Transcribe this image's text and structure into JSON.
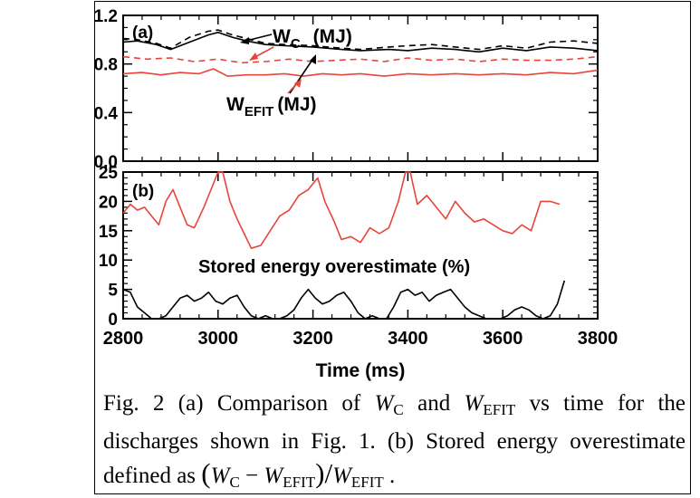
{
  "chart_data": [
    {
      "panel": "(a)",
      "type": "line",
      "xlim": [
        2800,
        3800
      ],
      "ylim": [
        0,
        1.2
      ],
      "yticks": [
        0.0,
        0.4,
        0.8,
        1.2
      ],
      "ytick_labels": [
        "0.0",
        "0.4",
        "0.8",
        "1.2"
      ],
      "annotations": {
        "wc_main": "W",
        "wc_sub": "C",
        "wc_unit": "(MJ)",
        "wefit_main": "W",
        "wefit_sub": "EFIT",
        "wefit_unit": "(MJ)"
      },
      "series": [
        {
          "color": "#000000",
          "dash": "solid",
          "x": [
            2800,
            2830,
            2870,
            2900,
            2940,
            2980,
            3000,
            3030,
            3060,
            3100,
            3140,
            3200,
            3260,
            3300,
            3360,
            3400,
            3450,
            3500,
            3550,
            3600,
            3650,
            3700,
            3750,
            3800
          ],
          "y": [
            0.98,
            0.99,
            0.96,
            0.92,
            0.98,
            1.04,
            1.06,
            1.02,
            0.99,
            0.96,
            0.95,
            0.94,
            0.92,
            0.91,
            0.92,
            0.91,
            0.93,
            0.92,
            0.9,
            0.93,
            0.91,
            0.94,
            0.93,
            0.91
          ]
        },
        {
          "color": "#000000",
          "dash": "dashed",
          "x": [
            2800,
            2830,
            2870,
            2900,
            2940,
            2980,
            3000,
            3030,
            3060,
            3100,
            3140,
            3200,
            3260,
            3300,
            3360,
            3400,
            3450,
            3500,
            3550,
            3600,
            3650,
            3700,
            3750,
            3800
          ],
          "y": [
            1.01,
            1.0,
            0.97,
            0.93,
            1.02,
            1.07,
            1.08,
            1.04,
            1.01,
            0.97,
            0.96,
            0.95,
            0.93,
            0.92,
            0.94,
            0.95,
            0.96,
            0.94,
            0.92,
            0.95,
            0.93,
            0.98,
            0.99,
            0.97
          ]
        },
        {
          "color": "#e8443a",
          "dash": "dashed",
          "x": [
            2800,
            2850,
            2900,
            2950,
            3000,
            3050,
            3100,
            3150,
            3200,
            3250,
            3300,
            3350,
            3400,
            3450,
            3500,
            3550,
            3600,
            3650,
            3700,
            3750,
            3800
          ],
          "y": [
            0.86,
            0.84,
            0.85,
            0.82,
            0.84,
            0.81,
            0.82,
            0.84,
            0.82,
            0.83,
            0.84,
            0.82,
            0.85,
            0.83,
            0.84,
            0.82,
            0.84,
            0.83,
            0.83,
            0.84,
            0.86
          ]
        },
        {
          "color": "#e8443a",
          "dash": "solid",
          "x": [
            2800,
            2840,
            2880,
            2920,
            2960,
            2990,
            3020,
            3060,
            3100,
            3140,
            3180,
            3220,
            3260,
            3300,
            3350,
            3400,
            3450,
            3500,
            3550,
            3600,
            3650,
            3700,
            3750,
            3800
          ],
          "y": [
            0.72,
            0.73,
            0.71,
            0.73,
            0.72,
            0.76,
            0.7,
            0.71,
            0.71,
            0.72,
            0.7,
            0.72,
            0.71,
            0.72,
            0.7,
            0.72,
            0.71,
            0.72,
            0.71,
            0.72,
            0.71,
            0.73,
            0.72,
            0.75
          ]
        }
      ]
    },
    {
      "panel": "(b)",
      "type": "line",
      "xlim": [
        2800,
        3800
      ],
      "ylim": [
        0,
        25
      ],
      "yticks": [
        0,
        5,
        10,
        15,
        20,
        25
      ],
      "ytick_labels": [
        "0",
        "5",
        "10",
        "15",
        "20",
        "25"
      ],
      "xticks": [
        2800,
        3000,
        3200,
        3400,
        3600,
        3800
      ],
      "xtick_labels": [
        "2800",
        "3000",
        "3200",
        "3400",
        "3600",
        "3800"
      ],
      "xlabel": "Time (ms)",
      "annotation": "Stored energy overestimate (%)",
      "series": [
        {
          "color": "#e8443a",
          "x": [
            2800,
            2815,
            2830,
            2845,
            2860,
            2875,
            2890,
            2905,
            2920,
            2935,
            2950,
            2970,
            2990,
            3000,
            3010,
            3025,
            3040,
            3055,
            3070,
            3090,
            3110,
            3130,
            3150,
            3170,
            3190,
            3210,
            3225,
            3245,
            3260,
            3280,
            3300,
            3320,
            3340,
            3360,
            3380,
            3395,
            3405,
            3420,
            3440,
            3460,
            3480,
            3500,
            3520,
            3540,
            3560,
            3580,
            3600,
            3620,
            3640,
            3660,
            3680,
            3700,
            3720
          ],
          "y": [
            18.0,
            19.5,
            18.5,
            19.0,
            17.5,
            16.0,
            20.0,
            22.0,
            19.0,
            16.0,
            15.5,
            19.0,
            23.0,
            26.5,
            25.0,
            20.0,
            17.0,
            14.5,
            12.0,
            12.5,
            15.0,
            17.5,
            18.5,
            21.0,
            22.0,
            24.0,
            20.0,
            16.5,
            13.5,
            14.0,
            13.0,
            15.5,
            14.5,
            15.5,
            20.0,
            26.5,
            26.0,
            19.5,
            21.0,
            19.0,
            17.0,
            20.0,
            18.0,
            16.5,
            17.0,
            16.0,
            15.0,
            14.5,
            16.0,
            15.0,
            20.0,
            20.0,
            19.5
          ]
        },
        {
          "color": "#000000",
          "x": [
            2800,
            2815,
            2830,
            2845,
            2860,
            2875,
            2890,
            2905,
            2920,
            2935,
            2950,
            2965,
            2980,
            2995,
            3010,
            3025,
            3040,
            3055,
            3070,
            3085,
            3100,
            3115,
            3130,
            3145,
            3160,
            3175,
            3190,
            3205,
            3220,
            3235,
            3250,
            3265,
            3280,
            3295,
            3310,
            3325,
            3340,
            3355,
            3370,
            3385,
            3400,
            3415,
            3430,
            3445,
            3460,
            3475,
            3490,
            3505,
            3520,
            3535,
            3550,
            3565,
            3580,
            3595,
            3610,
            3625,
            3640,
            3655,
            3670,
            3685,
            3700,
            3715,
            3730
          ],
          "y": [
            5.0,
            4.5,
            2.0,
            1.0,
            0.0,
            0.0,
            0.5,
            2.0,
            3.5,
            4.0,
            3.0,
            3.5,
            4.5,
            3.0,
            2.5,
            3.5,
            4.0,
            2.0,
            0.5,
            0.0,
            0.5,
            0.0,
            0.0,
            0.5,
            1.5,
            3.5,
            5.0,
            3.5,
            2.5,
            3.0,
            4.0,
            4.5,
            3.0,
            1.0,
            0.0,
            0.5,
            0.0,
            0.0,
            2.0,
            4.5,
            5.0,
            4.0,
            4.5,
            3.0,
            4.0,
            4.5,
            5.0,
            3.5,
            2.0,
            1.0,
            0.5,
            0.0,
            0.0,
            0.0,
            0.5,
            1.5,
            2.0,
            1.5,
            0.5,
            0.0,
            0.5,
            2.5,
            6.5
          ]
        }
      ]
    }
  ],
  "caption": {
    "p1": "Fig. 2 (a) Comparison of ",
    "w": "W",
    "sub_c": "C",
    "p2": " and ",
    "sub_efit": "EFIT",
    "p3": " vs time for the discharges shown in Fig. 1. (b) Stored energy overestimate defined as ",
    "minus": " − ",
    "slash": "/",
    "end": " ."
  }
}
